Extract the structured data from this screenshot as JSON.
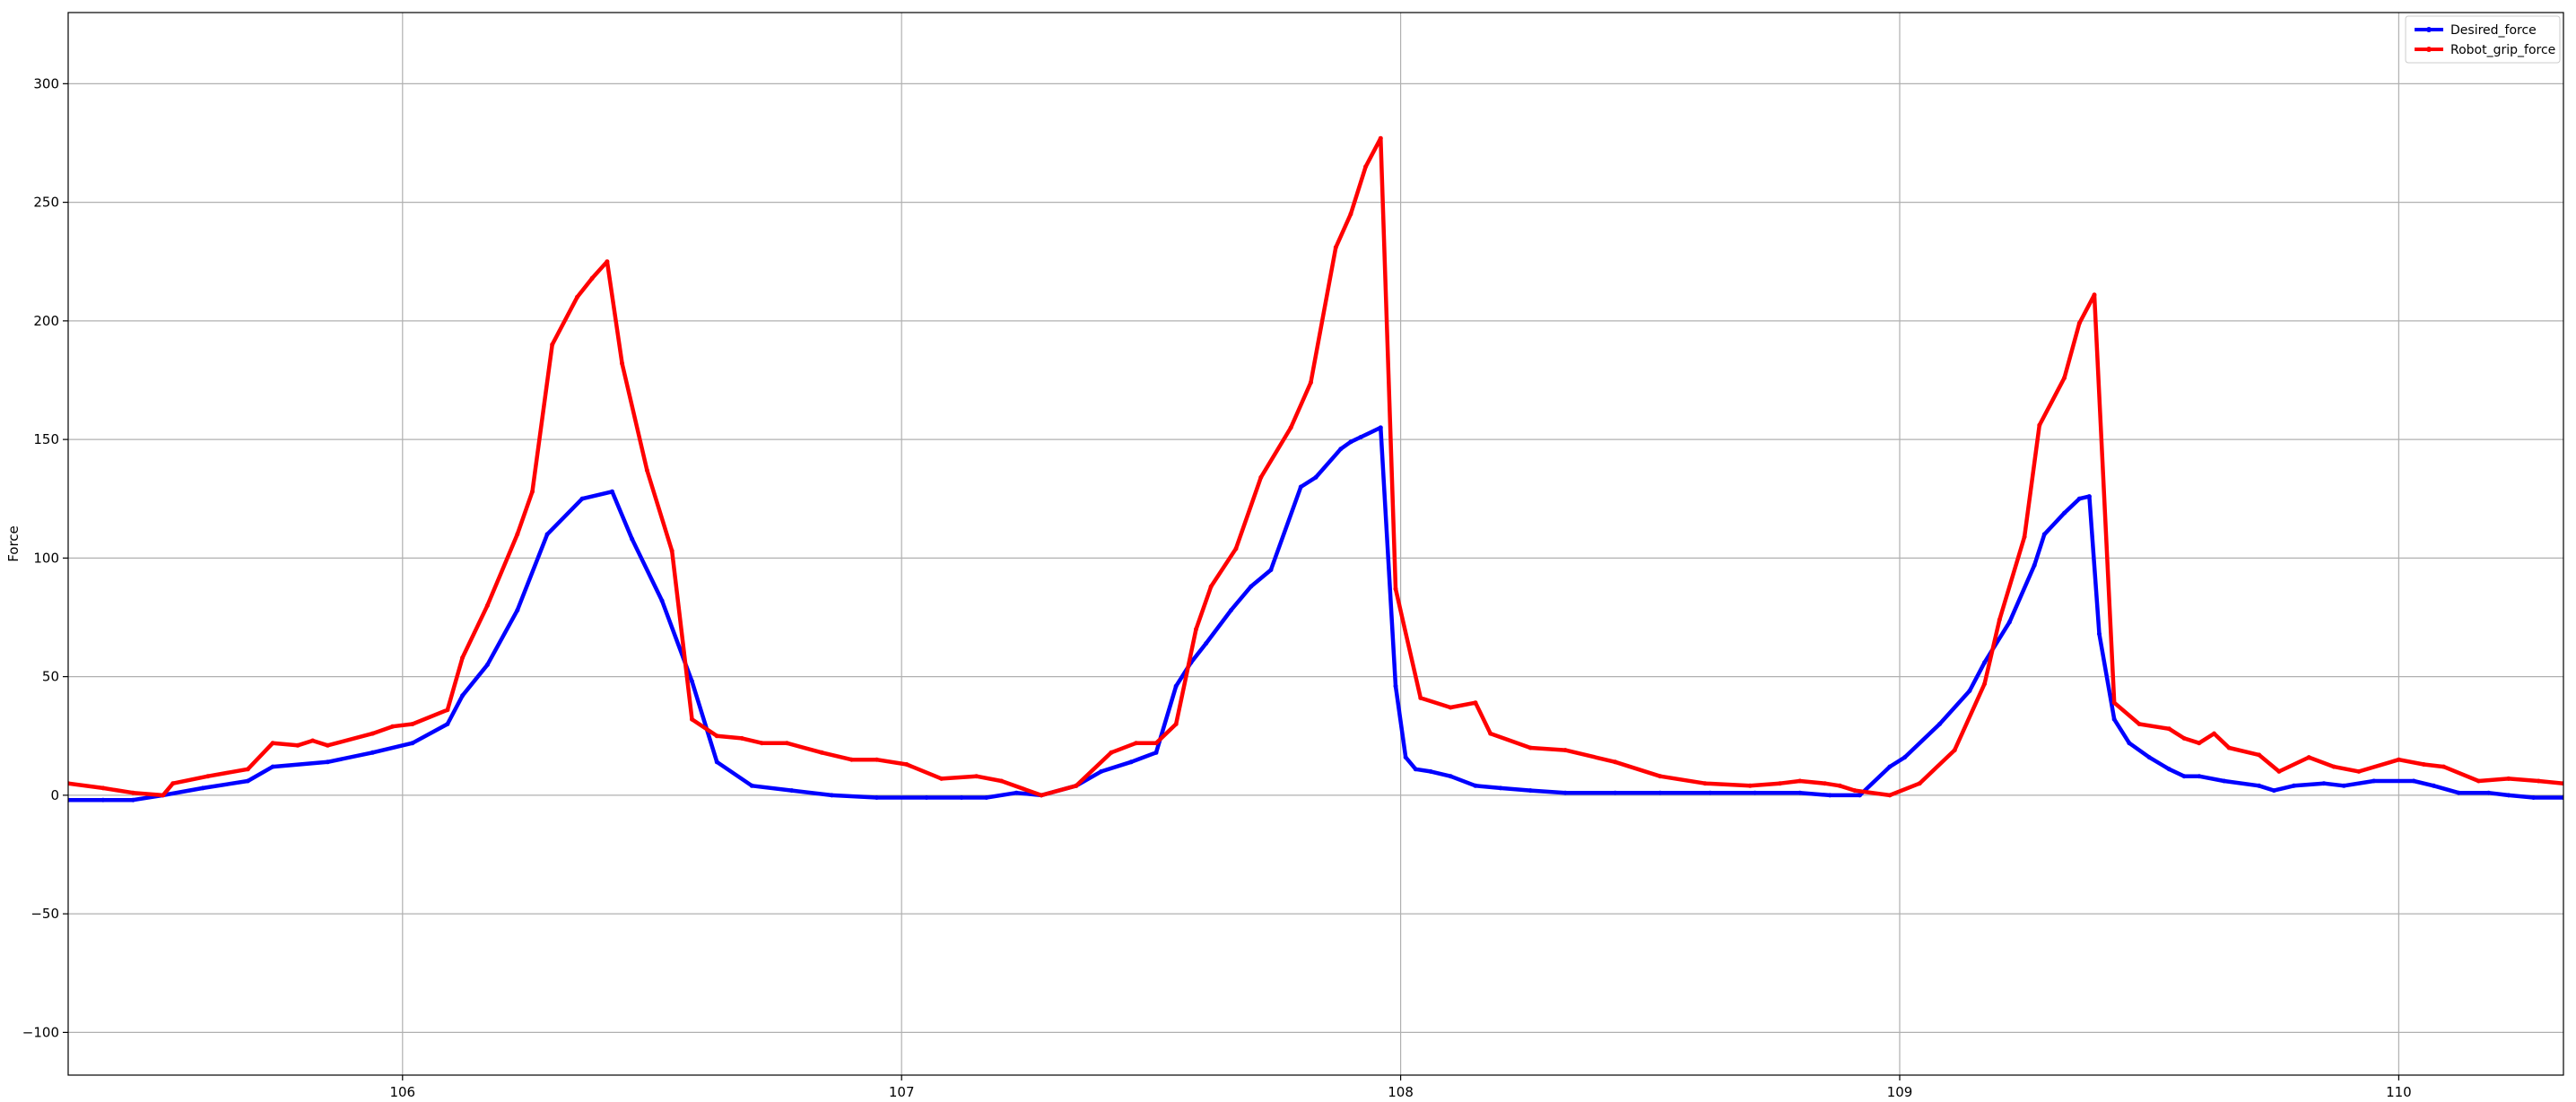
{
  "chart_data": {
    "type": "line",
    "title": "",
    "xlabel": "",
    "ylabel": "Force",
    "xlim": [
      105.33,
      110.33
    ],
    "ylim": [
      -118,
      330
    ],
    "xticks": [
      106,
      107,
      108,
      109,
      110
    ],
    "yticks": [
      -100,
      -50,
      0,
      50,
      100,
      150,
      200,
      250,
      300
    ],
    "grid": true,
    "legend_position": "top-right",
    "series": [
      {
        "name": "Desired_force",
        "color": "#0000ff",
        "x": [
          105.33,
          105.4,
          105.46,
          105.52,
          105.6,
          105.69,
          105.74,
          105.85,
          105.94,
          106.02,
          106.09,
          106.12,
          106.17,
          106.23,
          106.29,
          106.36,
          106.42,
          106.46,
          106.52,
          106.58,
          106.63,
          106.7,
          106.78,
          106.86,
          106.95,
          107.05,
          107.12,
          107.17,
          107.23,
          107.28,
          107.35,
          107.4,
          107.46,
          107.51,
          107.55,
          107.58,
          107.61,
          107.66,
          107.7,
          107.74,
          107.8,
          107.83,
          107.88,
          107.9,
          107.92,
          107.96,
          107.99,
          108.01,
          108.03,
          108.06,
          108.1,
          108.15,
          108.2,
          108.26,
          108.33,
          108.43,
          108.52,
          108.62,
          108.71,
          108.8,
          108.86,
          108.92,
          108.98,
          109.01,
          109.08,
          109.14,
          109.17,
          109.22,
          109.27,
          109.29,
          109.33,
          109.36,
          109.38,
          109.4,
          109.43,
          109.46,
          109.5,
          109.54,
          109.57,
          109.6,
          109.65,
          109.72,
          109.75,
          109.79,
          109.85,
          109.89,
          109.95,
          110.03,
          110.07,
          110.12,
          110.18,
          110.22,
          110.27,
          110.33
        ],
        "y": [
          -2,
          -2,
          -2,
          0,
          3,
          6,
          12,
          14,
          18,
          22,
          30,
          42,
          55,
          78,
          110,
          125,
          128,
          108,
          82,
          48,
          14,
          4,
          2,
          0,
          -1,
          -1,
          -1,
          -1,
          1,
          0,
          4,
          10,
          14,
          18,
          46,
          56,
          64,
          78,
          88,
          95,
          130,
          134,
          146,
          149,
          151,
          155,
          46,
          16,
          11,
          10,
          8,
          4,
          3,
          2,
          1,
          1,
          1,
          1,
          1,
          1,
          0,
          0,
          12,
          16,
          30,
          44,
          56,
          73,
          97,
          110,
          119,
          125,
          126,
          68,
          32,
          22,
          16,
          11,
          8,
          8,
          6,
          4,
          2,
          4,
          5,
          4,
          6,
          6,
          4,
          1,
          1,
          0,
          -1,
          -1
        ]
      },
      {
        "name": "Robot_grip_force",
        "color": "#ff0000",
        "x": [
          105.33,
          105.4,
          105.46,
          105.52,
          105.54,
          105.61,
          105.69,
          105.74,
          105.79,
          105.82,
          105.85,
          105.94,
          105.98,
          106.02,
          106.09,
          106.12,
          106.17,
          106.23,
          106.26,
          106.3,
          106.35,
          106.38,
          106.41,
          106.44,
          106.49,
          106.54,
          106.58,
          106.63,
          106.68,
          106.72,
          106.77,
          106.84,
          106.9,
          106.95,
          107.01,
          107.08,
          107.15,
          107.2,
          107.28,
          107.35,
          107.42,
          107.47,
          107.51,
          107.55,
          107.59,
          107.62,
          107.67,
          107.72,
          107.78,
          107.82,
          107.87,
          107.9,
          107.93,
          107.96,
          107.99,
          108.04,
          108.1,
          108.15,
          108.18,
          108.26,
          108.33,
          108.43,
          108.52,
          108.61,
          108.7,
          108.76,
          108.8,
          108.85,
          108.88,
          108.91,
          108.98,
          109.04,
          109.11,
          109.17,
          109.2,
          109.25,
          109.28,
          109.33,
          109.36,
          109.39,
          109.43,
          109.48,
          109.54,
          109.57,
          109.6,
          109.63,
          109.66,
          109.72,
          109.76,
          109.82,
          109.87,
          109.92,
          110.0,
          110.05,
          110.09,
          110.16,
          110.22,
          110.28,
          110.33
        ],
        "y": [
          5,
          3,
          1,
          0,
          5,
          8,
          11,
          22,
          21,
          23,
          21,
          26,
          29,
          30,
          36,
          58,
          80,
          110,
          128,
          190,
          210,
          218,
          225,
          182,
          137,
          103,
          32,
          25,
          24,
          22,
          22,
          18,
          15,
          15,
          13,
          7,
          8,
          6,
          0,
          4,
          18,
          22,
          22,
          30,
          70,
          88,
          104,
          134,
          155,
          174,
          231,
          245,
          265,
          277,
          87,
          41,
          37,
          39,
          26,
          20,
          19,
          14,
          8,
          5,
          4,
          5,
          6,
          5,
          4,
          2,
          0,
          5,
          19,
          47,
          74,
          109,
          156,
          176,
          199,
          211,
          39,
          30,
          28,
          24,
          22,
          26,
          20,
          17,
          10,
          16,
          12,
          10,
          15,
          13,
          12,
          6,
          7,
          6,
          5
        ]
      }
    ]
  }
}
